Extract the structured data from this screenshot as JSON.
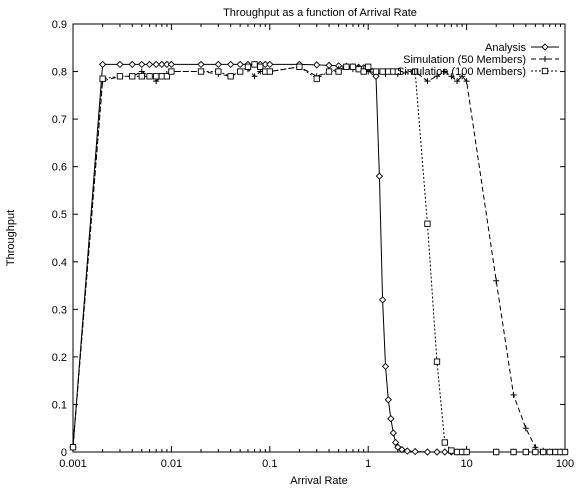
{
  "chart_data": {
    "type": "line",
    "title": "Throughput as a function of Arrival Rate",
    "xlabel": "Arrival Rate",
    "ylabel": "Throughput",
    "xscale": "log",
    "xlim": [
      0.001,
      100
    ],
    "ylim": [
      0,
      0.9
    ],
    "x_ticks": [
      "0.001",
      "0.01",
      "0.1",
      "1",
      "10",
      "100"
    ],
    "y_ticks": [
      "0",
      "0.1",
      "0.2",
      "0.3",
      "0.4",
      "0.5",
      "0.6",
      "0.7",
      "0.8",
      "0.9"
    ],
    "grid": false,
    "legend_position": "top-right",
    "series": [
      {
        "name": "Analysis",
        "marker": "diamond",
        "line_style": "solid",
        "x": [
          0.001,
          0.002,
          0.003,
          0.004,
          0.005,
          0.006,
          0.007,
          0.008,
          0.009,
          0.01,
          0.02,
          0.03,
          0.04,
          0.05,
          0.06,
          0.07,
          0.08,
          0.09,
          0.1,
          0.2,
          0.3,
          0.4,
          0.5,
          0.6,
          0.7,
          0.8,
          0.9,
          1.0,
          1.1,
          1.2,
          1.3,
          1.4,
          1.5,
          1.6,
          1.7,
          1.8,
          1.9,
          2.0,
          2.2,
          2.5,
          3,
          4,
          5,
          6,
          7,
          8,
          9,
          10,
          20,
          30,
          40,
          50,
          60,
          70,
          80,
          90,
          100
        ],
        "y": [
          0.01,
          0.815,
          0.815,
          0.815,
          0.815,
          0.815,
          0.815,
          0.815,
          0.815,
          0.815,
          0.815,
          0.815,
          0.815,
          0.815,
          0.815,
          0.815,
          0.815,
          0.815,
          0.815,
          0.815,
          0.814,
          0.813,
          0.812,
          0.811,
          0.81,
          0.809,
          0.808,
          0.806,
          0.8,
          0.79,
          0.58,
          0.32,
          0.18,
          0.11,
          0.07,
          0.04,
          0.02,
          0.01,
          0.005,
          0.002,
          0.001,
          0,
          0,
          0,
          0,
          0,
          0,
          0,
          0,
          0,
          0,
          0,
          0,
          0,
          0,
          0,
          0
        ]
      },
      {
        "name": "Simulation (50 Members)",
        "marker": "plus",
        "line_style": "dashed",
        "x": [
          0.001,
          0.002,
          0.003,
          0.004,
          0.005,
          0.006,
          0.007,
          0.008,
          0.009,
          0.01,
          0.02,
          0.03,
          0.04,
          0.05,
          0.06,
          0.07,
          0.08,
          0.09,
          0.1,
          0.2,
          0.3,
          0.4,
          0.5,
          0.6,
          0.7,
          0.8,
          0.9,
          1.0,
          1.5,
          2,
          3,
          4,
          5,
          6,
          7,
          8,
          9,
          10,
          20,
          30,
          40,
          50,
          60,
          70,
          80,
          90,
          100
        ],
        "y": [
          0.01,
          0.78,
          0.79,
          0.79,
          0.8,
          0.79,
          0.78,
          0.79,
          0.795,
          0.8,
          0.8,
          0.795,
          0.79,
          0.8,
          0.805,
          0.79,
          0.8,
          0.8,
          0.8,
          0.81,
          0.79,
          0.8,
          0.805,
          0.81,
          0.805,
          0.81,
          0.805,
          0.8,
          0.795,
          0.795,
          0.8,
          0.78,
          0.79,
          0.8,
          0.79,
          0.78,
          0.79,
          0.78,
          0.36,
          0.12,
          0.05,
          0.01,
          0.003,
          0,
          0,
          0,
          0
        ]
      },
      {
        "name": "Simulation (100 Members)",
        "marker": "square",
        "line_style": "dotted",
        "x": [
          0.001,
          0.002,
          0.003,
          0.004,
          0.005,
          0.006,
          0.007,
          0.008,
          0.009,
          0.01,
          0.02,
          0.03,
          0.04,
          0.05,
          0.06,
          0.07,
          0.08,
          0.09,
          0.1,
          0.2,
          0.3,
          0.4,
          0.5,
          0.6,
          0.7,
          0.8,
          0.9,
          1.0,
          1.2,
          1.4,
          1.6,
          1.8,
          2,
          3,
          4,
          5,
          6,
          7,
          8,
          9,
          10,
          20,
          30,
          40,
          50,
          60,
          70,
          80,
          90,
          100
        ],
        "y": [
          0.01,
          0.785,
          0.79,
          0.79,
          0.79,
          0.79,
          0.79,
          0.79,
          0.79,
          0.8,
          0.8,
          0.8,
          0.79,
          0.8,
          0.81,
          0.815,
          0.81,
          0.8,
          0.8,
          0.81,
          0.785,
          0.8,
          0.8,
          0.81,
          0.81,
          0.805,
          0.8,
          0.81,
          0.8,
          0.8,
          0.8,
          0.8,
          0.8,
          0.8,
          0.48,
          0.19,
          0.02,
          0.003,
          0,
          0,
          0,
          0,
          0,
          0,
          0,
          0,
          0,
          0,
          0,
          0
        ]
      }
    ]
  }
}
